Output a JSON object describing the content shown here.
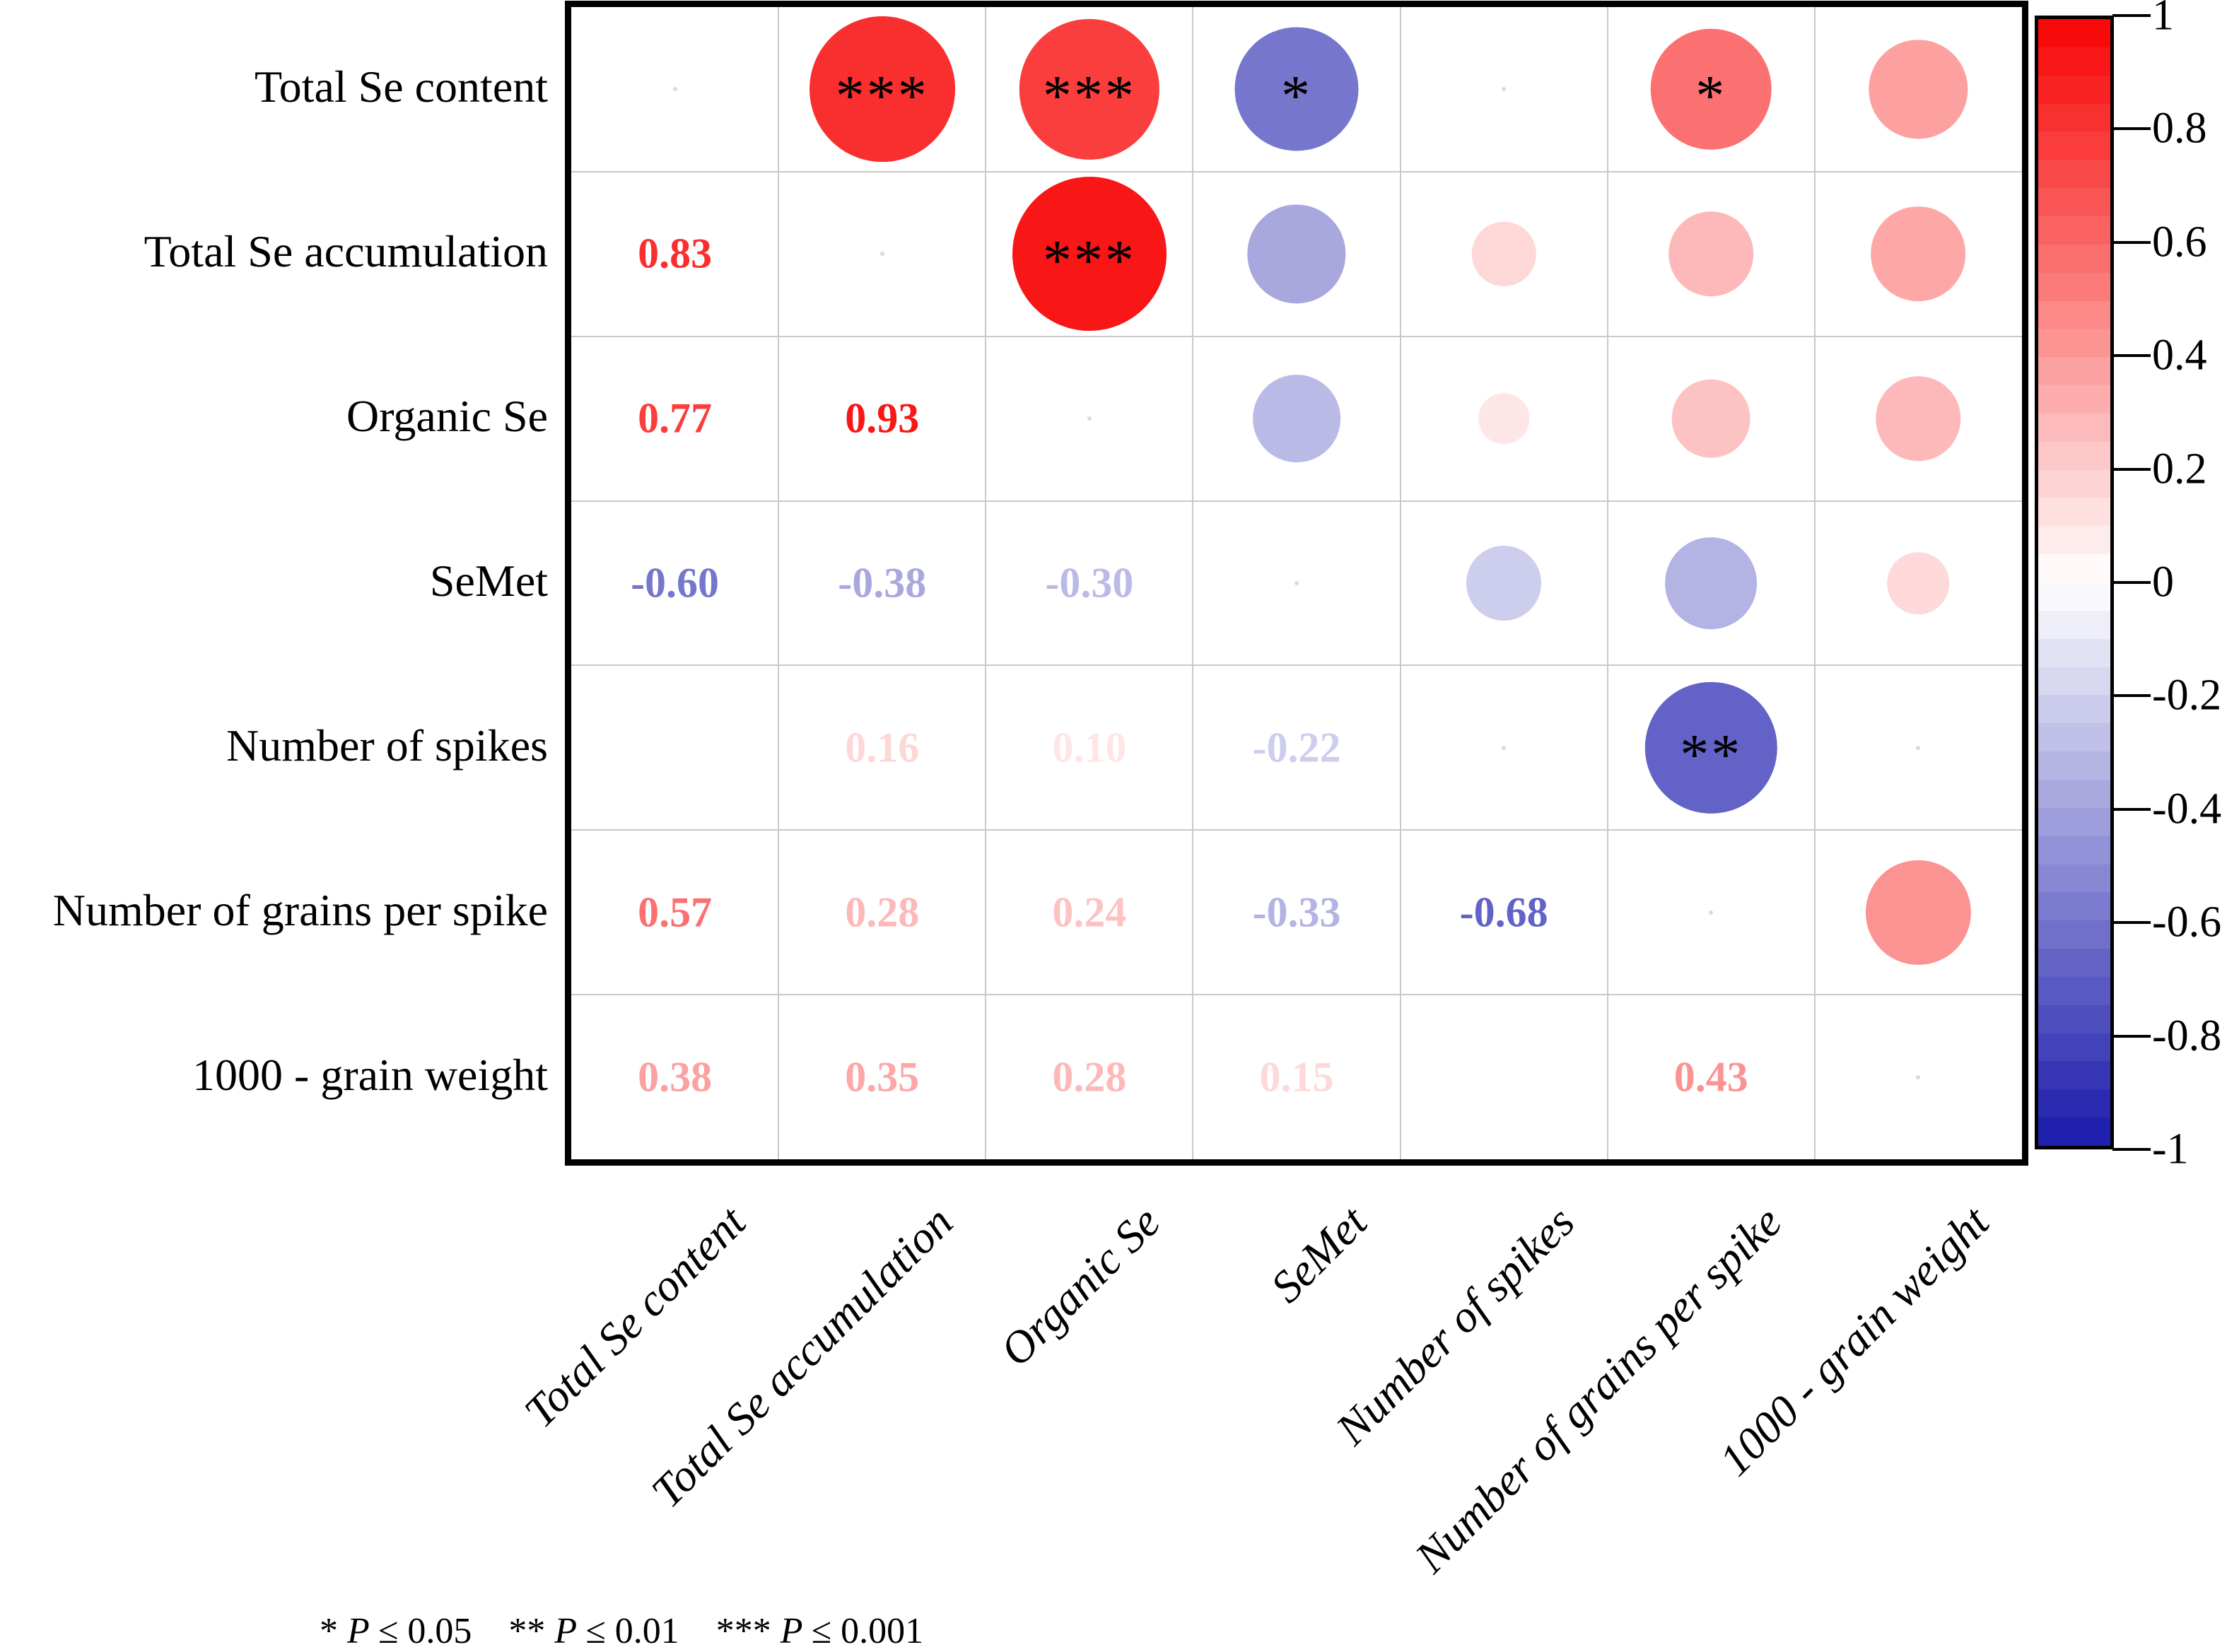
{
  "chart_data": {
    "type": "heatmap",
    "subtype": "correlation-bubble-matrix",
    "description": "Correlation matrix: lower triangle shows correlation coefficients as colored numbers, upper triangle shows circles sized and colored by correlation, diagonal blank",
    "variables": [
      "Total Se content",
      "Total Se accumulation",
      "Organic Se",
      "SeMet",
      "Number of spikes",
      "Number of grains per spike",
      "1000 - grain weight"
    ],
    "pairs": [
      {
        "a": 0,
        "b": 1,
        "r": 0.83,
        "sig": "***"
      },
      {
        "a": 0,
        "b": 2,
        "r": 0.77,
        "sig": "***"
      },
      {
        "a": 0,
        "b": 3,
        "r": -0.6,
        "sig": "*"
      },
      {
        "a": 0,
        "b": 4,
        "r": null,
        "sig": "",
        "blank": true
      },
      {
        "a": 0,
        "b": 5,
        "r": 0.57,
        "sig": "*"
      },
      {
        "a": 0,
        "b": 6,
        "r": 0.38,
        "sig": ""
      },
      {
        "a": 1,
        "b": 2,
        "r": 0.93,
        "sig": "***"
      },
      {
        "a": 1,
        "b": 3,
        "r": -0.38,
        "sig": ""
      },
      {
        "a": 1,
        "b": 4,
        "r": 0.16,
        "sig": ""
      },
      {
        "a": 1,
        "b": 5,
        "r": 0.28,
        "sig": ""
      },
      {
        "a": 1,
        "b": 6,
        "r": 0.35,
        "sig": ""
      },
      {
        "a": 2,
        "b": 3,
        "r": -0.3,
        "sig": ""
      },
      {
        "a": 2,
        "b": 4,
        "r": 0.1,
        "sig": ""
      },
      {
        "a": 2,
        "b": 5,
        "r": 0.24,
        "sig": ""
      },
      {
        "a": 2,
        "b": 6,
        "r": 0.28,
        "sig": ""
      },
      {
        "a": 3,
        "b": 4,
        "r": -0.22,
        "sig": ""
      },
      {
        "a": 3,
        "b": 5,
        "r": -0.33,
        "sig": ""
      },
      {
        "a": 3,
        "b": 6,
        "r": 0.15,
        "sig": ""
      },
      {
        "a": 4,
        "b": 5,
        "r": -0.68,
        "sig": "**"
      },
      {
        "a": 4,
        "b": 6,
        "r": null,
        "sig": "",
        "blank": true
      },
      {
        "a": 5,
        "b": 6,
        "r": 0.43,
        "sig": ""
      }
    ],
    "colorbar": {
      "min": -1,
      "max": 1,
      "tick_labels": [
        "1",
        "0.8",
        "0.6",
        "0.4",
        "0.2",
        "0",
        "-0.2",
        "-0.4",
        "-0.6",
        "-0.8",
        "-1"
      ],
      "tick_values": [
        1,
        0.8,
        0.6,
        0.4,
        0.2,
        0,
        -0.2,
        -0.4,
        -0.6,
        -0.8,
        -1
      ],
      "positive_color": "#f80404",
      "zero_color": "#ffffff",
      "negative_color": "#1a1aac",
      "bands": 40,
      "position": "right"
    },
    "footnote": {
      "segments": [
        {
          "stars": "*",
          "symbol": "P",
          "condition": "≤ 0.05"
        },
        {
          "stars": "**",
          "symbol": "P",
          "condition": "≤ 0.01"
        },
        {
          "stars": "***",
          "symbol": "P",
          "condition": "≤ 0.001"
        }
      ]
    },
    "layout": {
      "grid": "on",
      "x_tick_rotation_deg": -45,
      "title": "",
      "xlabel": "",
      "ylabel": ""
    }
  }
}
